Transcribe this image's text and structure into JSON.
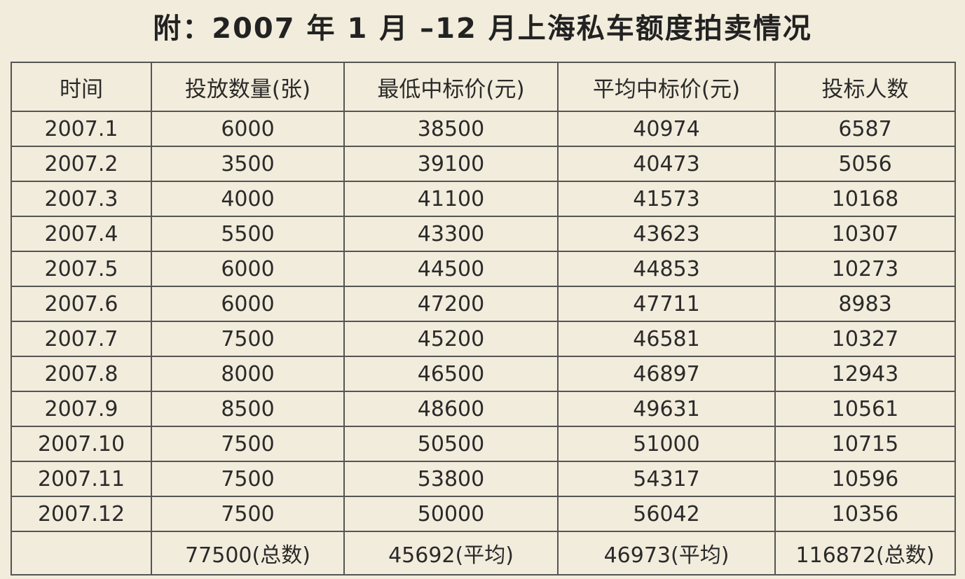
{
  "title": "附：2007 年 1 月 –12 月上海私车额度拍卖情况",
  "table": {
    "header": [
      "时间",
      "投放数量(张)",
      "最低中标价(元)",
      "平均中标价(元)",
      "投标人数"
    ],
    "rows": [
      [
        "2007.1",
        "6000",
        "38500",
        "40974",
        "6587"
      ],
      [
        "2007.2",
        "3500",
        "39100",
        "40473",
        "5056"
      ],
      [
        "2007.3",
        "4000",
        "41100",
        "41573",
        "10168"
      ],
      [
        "2007.4",
        "5500",
        "43300",
        "43623",
        "10307"
      ],
      [
        "2007.5",
        "6000",
        "44500",
        "44853",
        "10273"
      ],
      [
        "2007.6",
        "6000",
        "47200",
        "47711",
        "8983"
      ],
      [
        "2007.7",
        "7500",
        "45200",
        "46581",
        "10327"
      ],
      [
        "2007.8",
        "8000",
        "46500",
        "46897",
        "12943"
      ],
      [
        "2007.9",
        "8500",
        "48600",
        "49631",
        "10561"
      ],
      [
        "2007.10",
        "7500",
        "50500",
        "51000",
        "10715"
      ],
      [
        "2007.11",
        "7500",
        "53800",
        "54317",
        "10596"
      ],
      [
        "2007.12",
        "7500",
        "50000",
        "56042",
        "10356"
      ]
    ],
    "footer": [
      "77500(总数)",
      "45692(平均)",
      "46973(平均)",
      "116872(总数)"
    ]
  }
}
